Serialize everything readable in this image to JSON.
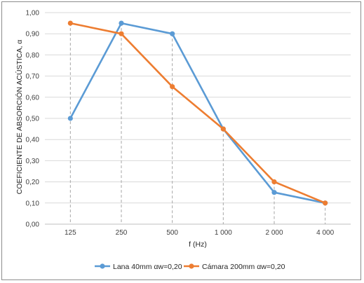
{
  "chart_data": {
    "type": "line",
    "title": "",
    "xlabel": "f (Hz)",
    "ylabel": "COEFICIENTE DE ABSORCIÓN ACÚSTICA, α",
    "categories": [
      "125",
      "250",
      "500",
      "1 000",
      "2 000",
      "4 000"
    ],
    "ylim": [
      0,
      1
    ],
    "y_ticks": [
      "0,00",
      "0,10",
      "0,20",
      "0,30",
      "0,40",
      "0,50",
      "0,60",
      "0,70",
      "0,80",
      "0,90",
      "1,00"
    ],
    "grid": "horizontal",
    "drop_lines": true,
    "legend_position": "bottom",
    "series": [
      {
        "name": "Lana 40mm αw=0,20",
        "color": "#5b9bd5",
        "values": [
          0.5,
          0.95,
          0.9,
          0.45,
          0.15,
          0.1
        ]
      },
      {
        "name": "Cámara 200mm αw=0,20",
        "color": "#ed7d31",
        "values": [
          0.95,
          0.9,
          0.65,
          0.45,
          0.2,
          0.1
        ]
      }
    ]
  }
}
